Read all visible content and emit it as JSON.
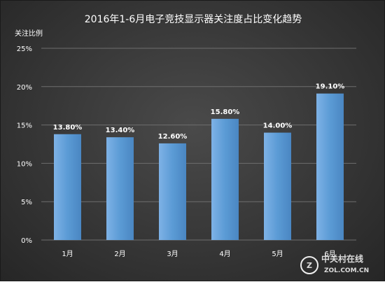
{
  "chart_data": {
    "type": "bar",
    "title": "2016年1-6月电子竞技显示器关注度占比变化趋势",
    "ylabel": "关注比例",
    "xlabel": "",
    "categories": [
      "1月",
      "2月",
      "3月",
      "4月",
      "5月",
      "6月"
    ],
    "values": [
      13.8,
      13.4,
      12.6,
      15.8,
      14.0,
      19.1
    ],
    "value_labels": [
      "13.80%",
      "13.40%",
      "12.60%",
      "15.80%",
      "14.00%",
      "19.10%"
    ],
    "yticks": [
      0,
      5,
      10,
      15,
      20,
      25
    ],
    "ytick_labels": [
      "0%",
      "5%",
      "10%",
      "15%",
      "20%",
      "25%"
    ],
    "ylim": [
      0,
      25
    ],
    "grid": true,
    "legend": "none",
    "colors": {
      "bar": "#5b9bd5",
      "bar_light": "#7eb2e6",
      "grid": "#6e6e6e",
      "text": "#ffffff"
    }
  },
  "watermark": {
    "brand": "中关村在线",
    "domain": "ZOL.COM.CN"
  }
}
